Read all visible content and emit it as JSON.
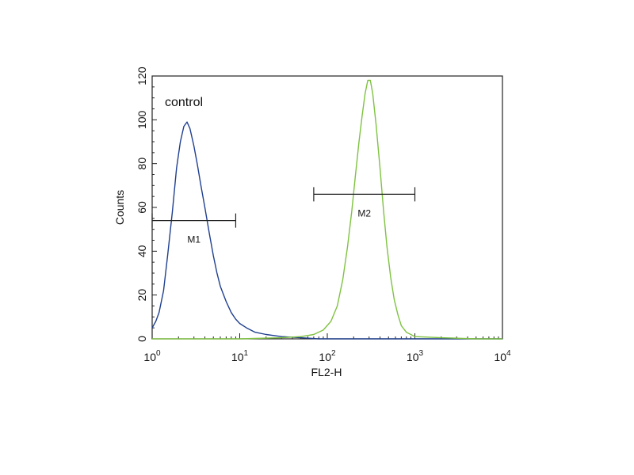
{
  "chart_data": {
    "type": "line",
    "title": "",
    "xlabel": "FL2-H",
    "ylabel": "Counts",
    "xscale": "log",
    "xlim": [
      1,
      10000
    ],
    "ylim": [
      0,
      120
    ],
    "grid": false,
    "x_ticks": [
      {
        "base": "10",
        "exp": "0"
      },
      {
        "base": "10",
        "exp": "1"
      },
      {
        "base": "10",
        "exp": "2"
      },
      {
        "base": "10",
        "exp": "3"
      },
      {
        "base": "10",
        "exp": "4"
      }
    ],
    "y_ticks": [
      "0",
      "20",
      "40",
      "60",
      "80",
      "100",
      "120"
    ],
    "annotation": "control",
    "markers": [
      {
        "label": "M1",
        "x_start": 1.0,
        "x_end": 9.0,
        "y": 54
      },
      {
        "label": "M2",
        "x_start": 70,
        "x_end": 1000,
        "y": 66
      }
    ],
    "series": [
      {
        "color": "#1f3f8f",
        "points": [
          [
            1.0,
            5
          ],
          [
            1.1,
            8
          ],
          [
            1.2,
            12
          ],
          [
            1.35,
            22
          ],
          [
            1.5,
            38
          ],
          [
            1.7,
            58
          ],
          [
            1.9,
            78
          ],
          [
            2.1,
            90
          ],
          [
            2.3,
            97
          ],
          [
            2.5,
            99
          ],
          [
            2.7,
            96
          ],
          [
            3.0,
            88
          ],
          [
            3.3,
            79
          ],
          [
            3.6,
            70
          ],
          [
            4.0,
            60
          ],
          [
            4.5,
            48
          ],
          [
            5.0,
            38
          ],
          [
            5.5,
            30
          ],
          [
            6.0,
            24
          ],
          [
            7.0,
            17
          ],
          [
            8.0,
            12
          ],
          [
            9.0,
            9
          ],
          [
            10,
            7
          ],
          [
            12,
            5
          ],
          [
            15,
            3
          ],
          [
            20,
            2
          ],
          [
            30,
            1
          ],
          [
            50,
            0.5
          ],
          [
            80,
            0
          ],
          [
            200,
            0
          ],
          [
            1000,
            0
          ],
          [
            10000,
            0
          ]
        ]
      },
      {
        "color": "#7fc241",
        "points": [
          [
            1.0,
            0
          ],
          [
            10,
            0
          ],
          [
            30,
            0.5
          ],
          [
            50,
            1
          ],
          [
            70,
            2
          ],
          [
            90,
            4
          ],
          [
            110,
            8
          ],
          [
            130,
            15
          ],
          [
            150,
            27
          ],
          [
            170,
            42
          ],
          [
            190,
            58
          ],
          [
            210,
            75
          ],
          [
            230,
            90
          ],
          [
            250,
            102
          ],
          [
            270,
            112
          ],
          [
            290,
            118
          ],
          [
            310,
            118
          ],
          [
            330,
            112
          ],
          [
            360,
            98
          ],
          [
            400,
            78
          ],
          [
            440,
            58
          ],
          [
            480,
            42
          ],
          [
            530,
            28
          ],
          [
            580,
            18
          ],
          [
            640,
            11
          ],
          [
            700,
            6
          ],
          [
            800,
            3
          ],
          [
            900,
            2
          ],
          [
            1000,
            1
          ],
          [
            2000,
            0.5
          ],
          [
            5000,
            0
          ],
          [
            10000,
            0
          ]
        ]
      }
    ]
  }
}
